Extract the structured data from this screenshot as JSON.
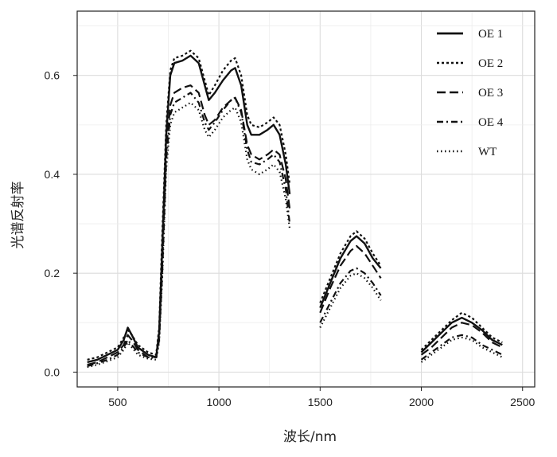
{
  "chart_data": {
    "type": "line",
    "title": "",
    "xlabel": "波长/nm",
    "ylabel": "光谱反射率",
    "xlim": [
      300,
      2560
    ],
    "ylim": [
      -0.03,
      0.73
    ],
    "xticks": [
      500,
      1000,
      1500,
      2000,
      2500
    ],
    "yticks": [
      0.0,
      0.2,
      0.4,
      0.6
    ],
    "ytick_labels": [
      "0.0",
      "0.2",
      "0.4",
      "0.6"
    ],
    "grid": true,
    "legend_position": "top-right",
    "series": [
      {
        "name": "OE 1",
        "segments": [
          [
            [
              350,
              0.02
            ],
            [
              400,
              0.025
            ],
            [
              450,
              0.035
            ],
            [
              500,
              0.045
            ],
            [
              530,
              0.065
            ],
            [
              550,
              0.09
            ],
            [
              570,
              0.075
            ],
            [
              600,
              0.05
            ],
            [
              650,
              0.035
            ],
            [
              690,
              0.03
            ],
            [
              705,
              0.08
            ],
            [
              720,
              0.25
            ],
            [
              740,
              0.48
            ],
            [
              760,
              0.6
            ],
            [
              780,
              0.625
            ],
            [
              820,
              0.63
            ],
            [
              860,
              0.64
            ],
            [
              900,
              0.625
            ],
            [
              930,
              0.58
            ],
            [
              950,
              0.55
            ],
            [
              980,
              0.565
            ],
            [
              1020,
              0.59
            ],
            [
              1060,
              0.61
            ],
            [
              1080,
              0.615
            ],
            [
              1110,
              0.58
            ],
            [
              1140,
              0.5
            ],
            [
              1160,
              0.48
            ],
            [
              1200,
              0.48
            ],
            [
              1240,
              0.49
            ],
            [
              1270,
              0.5
            ],
            [
              1300,
              0.48
            ],
            [
              1330,
              0.42
            ],
            [
              1350,
              0.36
            ]
          ],
          [
            [
              1500,
              0.13
            ],
            [
              1550,
              0.18
            ],
            [
              1600,
              0.23
            ],
            [
              1650,
              0.265
            ],
            [
              1680,
              0.275
            ],
            [
              1720,
              0.26
            ],
            [
              1760,
              0.23
            ],
            [
              1800,
              0.21
            ]
          ],
          [
            [
              2000,
              0.04
            ],
            [
              2050,
              0.06
            ],
            [
              2100,
              0.08
            ],
            [
              2150,
              0.1
            ],
            [
              2200,
              0.11
            ],
            [
              2250,
              0.1
            ],
            [
              2300,
              0.085
            ],
            [
              2350,
              0.065
            ],
            [
              2400,
              0.055
            ]
          ]
        ]
      },
      {
        "name": "OE 2",
        "segments": [
          [
            [
              350,
              0.025
            ],
            [
              400,
              0.03
            ],
            [
              450,
              0.04
            ],
            [
              500,
              0.05
            ],
            [
              530,
              0.07
            ],
            [
              550,
              0.085
            ],
            [
              570,
              0.075
            ],
            [
              600,
              0.055
            ],
            [
              650,
              0.04
            ],
            [
              690,
              0.035
            ],
            [
              705,
              0.09
            ],
            [
              720,
              0.28
            ],
            [
              740,
              0.5
            ],
            [
              760,
              0.61
            ],
            [
              780,
              0.635
            ],
            [
              820,
              0.64
            ],
            [
              860,
              0.65
            ],
            [
              900,
              0.635
            ],
            [
              930,
              0.59
            ],
            [
              950,
              0.56
            ],
            [
              980,
              0.58
            ],
            [
              1020,
              0.61
            ],
            [
              1060,
              0.63
            ],
            [
              1080,
              0.635
            ],
            [
              1110,
              0.6
            ],
            [
              1140,
              0.52
            ],
            [
              1160,
              0.5
            ],
            [
              1200,
              0.495
            ],
            [
              1240,
              0.505
            ],
            [
              1270,
              0.515
            ],
            [
              1300,
              0.5
            ],
            [
              1330,
              0.44
            ],
            [
              1350,
              0.38
            ]
          ],
          [
            [
              1500,
              0.14
            ],
            [
              1550,
              0.19
            ],
            [
              1600,
              0.24
            ],
            [
              1650,
              0.275
            ],
            [
              1680,
              0.285
            ],
            [
              1720,
              0.27
            ],
            [
              1760,
              0.24
            ],
            [
              1800,
              0.215
            ]
          ],
          [
            [
              2000,
              0.045
            ],
            [
              2050,
              0.065
            ],
            [
              2100,
              0.085
            ],
            [
              2150,
              0.105
            ],
            [
              2200,
              0.12
            ],
            [
              2250,
              0.11
            ],
            [
              2300,
              0.09
            ],
            [
              2350,
              0.07
            ],
            [
              2400,
              0.06
            ]
          ]
        ]
      },
      {
        "name": "OE 3",
        "segments": [
          [
            [
              350,
              0.015
            ],
            [
              400,
              0.02
            ],
            [
              450,
              0.03
            ],
            [
              500,
              0.04
            ],
            [
              530,
              0.055
            ],
            [
              550,
              0.075
            ],
            [
              570,
              0.065
            ],
            [
              600,
              0.045
            ],
            [
              650,
              0.03
            ],
            [
              690,
              0.03
            ],
            [
              705,
              0.07
            ],
            [
              720,
              0.22
            ],
            [
              740,
              0.45
            ],
            [
              760,
              0.54
            ],
            [
              780,
              0.565
            ],
            [
              820,
              0.575
            ],
            [
              860,
              0.58
            ],
            [
              900,
              0.565
            ],
            [
              930,
              0.52
            ],
            [
              950,
              0.5
            ],
            [
              980,
              0.51
            ],
            [
              1020,
              0.535
            ],
            [
              1060,
              0.55
            ],
            [
              1080,
              0.555
            ],
            [
              1110,
              0.53
            ],
            [
              1140,
              0.46
            ],
            [
              1160,
              0.44
            ],
            [
              1200,
              0.43
            ],
            [
              1240,
              0.44
            ],
            [
              1270,
              0.45
            ],
            [
              1300,
              0.44
            ],
            [
              1330,
              0.39
            ],
            [
              1350,
              0.33
            ]
          ],
          [
            [
              1500,
              0.12
            ],
            [
              1550,
              0.17
            ],
            [
              1600,
              0.215
            ],
            [
              1650,
              0.245
            ],
            [
              1680,
              0.255
            ],
            [
              1720,
              0.24
            ],
            [
              1760,
              0.215
            ],
            [
              1800,
              0.19
            ]
          ],
          [
            [
              2000,
              0.035
            ],
            [
              2050,
              0.05
            ],
            [
              2100,
              0.07
            ],
            [
              2150,
              0.09
            ],
            [
              2200,
              0.1
            ],
            [
              2250,
              0.095
            ],
            [
              2300,
              0.08
            ],
            [
              2350,
              0.06
            ],
            [
              2400,
              0.05
            ]
          ]
        ]
      },
      {
        "name": "OE 4",
        "segments": [
          [
            [
              350,
              0.012
            ],
            [
              400,
              0.018
            ],
            [
              450,
              0.025
            ],
            [
              500,
              0.035
            ],
            [
              530,
              0.05
            ],
            [
              550,
              0.065
            ],
            [
              570,
              0.055
            ],
            [
              600,
              0.04
            ],
            [
              650,
              0.03
            ],
            [
              690,
              0.028
            ],
            [
              705,
              0.065
            ],
            [
              720,
              0.2
            ],
            [
              740,
              0.43
            ],
            [
              760,
              0.52
            ],
            [
              780,
              0.545
            ],
            [
              820,
              0.555
            ],
            [
              860,
              0.565
            ],
            [
              900,
              0.545
            ],
            [
              930,
              0.505
            ],
            [
              950,
              0.49
            ],
            [
              980,
              0.505
            ],
            [
              1020,
              0.53
            ],
            [
              1060,
              0.55
            ],
            [
              1080,
              0.555
            ],
            [
              1110,
              0.525
            ],
            [
              1140,
              0.45
            ],
            [
              1160,
              0.425
            ],
            [
              1200,
              0.42
            ],
            [
              1240,
              0.43
            ],
            [
              1270,
              0.44
            ],
            [
              1300,
              0.425
            ],
            [
              1330,
              0.37
            ],
            [
              1350,
              0.3
            ]
          ],
          [
            [
              1500,
              0.1
            ],
            [
              1550,
              0.14
            ],
            [
              1600,
              0.18
            ],
            [
              1650,
              0.205
            ],
            [
              1680,
              0.21
            ],
            [
              1720,
              0.2
            ],
            [
              1760,
              0.18
            ],
            [
              1800,
              0.155
            ]
          ],
          [
            [
              2000,
              0.025
            ],
            [
              2050,
              0.04
            ],
            [
              2100,
              0.055
            ],
            [
              2150,
              0.07
            ],
            [
              2200,
              0.075
            ],
            [
              2250,
              0.07
            ],
            [
              2300,
              0.055
            ],
            [
              2350,
              0.045
            ],
            [
              2400,
              0.035
            ]
          ]
        ]
      },
      {
        "name": "WT",
        "segments": [
          [
            [
              350,
              0.01
            ],
            [
              400,
              0.015
            ],
            [
              450,
              0.022
            ],
            [
              500,
              0.03
            ],
            [
              530,
              0.045
            ],
            [
              550,
              0.06
            ],
            [
              570,
              0.05
            ],
            [
              600,
              0.035
            ],
            [
              650,
              0.027
            ],
            [
              690,
              0.025
            ],
            [
              705,
              0.06
            ],
            [
              720,
              0.19
            ],
            [
              740,
              0.41
            ],
            [
              760,
              0.5
            ],
            [
              780,
              0.525
            ],
            [
              820,
              0.535
            ],
            [
              860,
              0.545
            ],
            [
              900,
              0.53
            ],
            [
              930,
              0.49
            ],
            [
              950,
              0.475
            ],
            [
              980,
              0.49
            ],
            [
              1020,
              0.515
            ],
            [
              1060,
              0.53
            ],
            [
              1080,
              0.535
            ],
            [
              1110,
              0.505
            ],
            [
              1140,
              0.43
            ],
            [
              1160,
              0.41
            ],
            [
              1200,
              0.4
            ],
            [
              1240,
              0.41
            ],
            [
              1270,
              0.42
            ],
            [
              1300,
              0.405
            ],
            [
              1330,
              0.35
            ],
            [
              1350,
              0.29
            ]
          ],
          [
            [
              1500,
              0.09
            ],
            [
              1550,
              0.13
            ],
            [
              1600,
              0.17
            ],
            [
              1650,
              0.195
            ],
            [
              1680,
              0.2
            ],
            [
              1720,
              0.19
            ],
            [
              1760,
              0.17
            ],
            [
              1800,
              0.145
            ]
          ],
          [
            [
              2000,
              0.02
            ],
            [
              2050,
              0.035
            ],
            [
              2100,
              0.05
            ],
            [
              2150,
              0.065
            ],
            [
              2200,
              0.07
            ],
            [
              2250,
              0.065
            ],
            [
              2300,
              0.05
            ],
            [
              2350,
              0.04
            ],
            [
              2400,
              0.03
            ]
          ]
        ]
      }
    ]
  }
}
